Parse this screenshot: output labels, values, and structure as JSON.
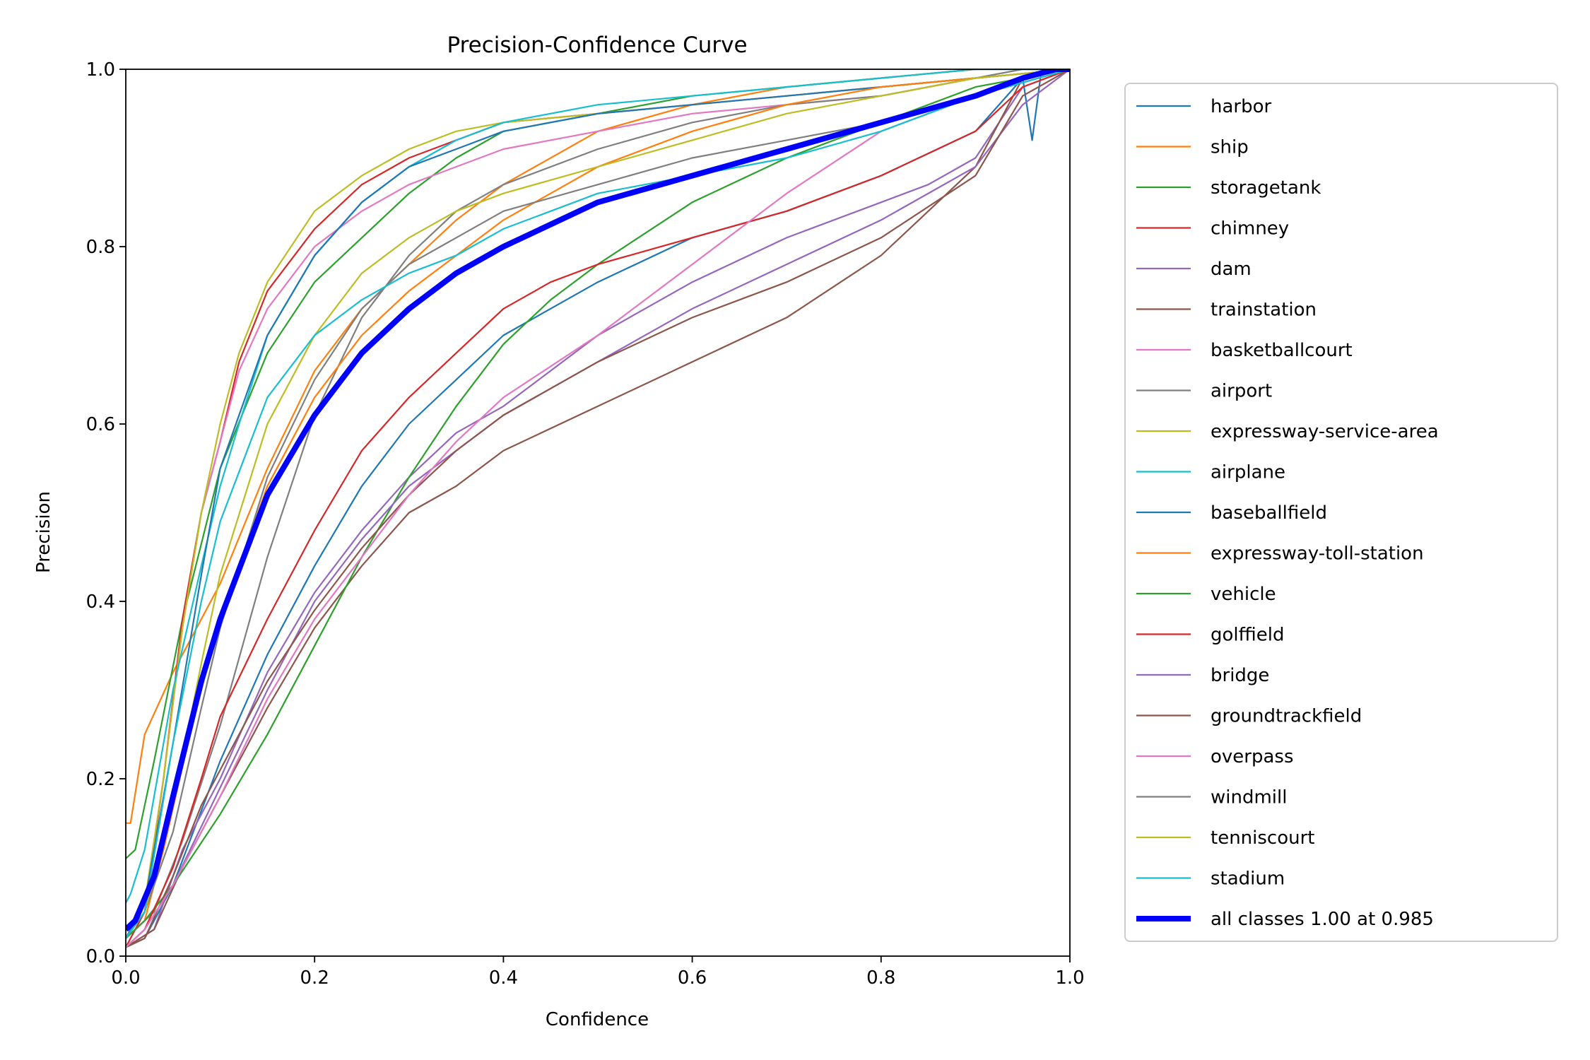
{
  "chart_data": {
    "type": "line",
    "title": "Precision-Confidence Curve",
    "xlabel": "Confidence",
    "ylabel": "Precision",
    "xlim": [
      0.0,
      1.0
    ],
    "ylim": [
      0.0,
      1.0
    ],
    "xticks": [
      "0.0",
      "0.2",
      "0.4",
      "0.6",
      "0.8",
      "1.0"
    ],
    "yticks": [
      "0.0",
      "0.2",
      "0.4",
      "0.6",
      "0.8",
      "1.0"
    ],
    "grid": false,
    "legend_position": "outside-right",
    "series": [
      {
        "name": "harbor",
        "color": "#1f77b4",
        "x": [
          0.0,
          0.02,
          0.05,
          0.1,
          0.15,
          0.2,
          0.25,
          0.3,
          0.4,
          0.5,
          0.6,
          0.7,
          0.8,
          0.9,
          0.95,
          0.96,
          0.97,
          1.0
        ],
        "y": [
          0.01,
          0.02,
          0.08,
          0.22,
          0.34,
          0.44,
          0.53,
          0.6,
          0.7,
          0.76,
          0.81,
          0.84,
          0.88,
          0.93,
          0.99,
          0.92,
          1.0,
          1.0
        ]
      },
      {
        "name": "ship",
        "color": "#ff7f0e",
        "x": [
          0.0,
          0.005,
          0.02,
          0.05,
          0.1,
          0.15,
          0.2,
          0.25,
          0.3,
          0.35,
          0.4,
          0.5,
          0.6,
          0.7,
          0.8,
          0.9,
          0.95,
          1.0
        ],
        "y": [
          0.15,
          0.15,
          0.25,
          0.32,
          0.42,
          0.55,
          0.66,
          0.73,
          0.78,
          0.83,
          0.87,
          0.93,
          0.96,
          0.98,
          0.99,
          1.0,
          1.0,
          1.0
        ]
      },
      {
        "name": "storagetank",
        "color": "#2ca02c",
        "x": [
          0.0,
          0.01,
          0.03,
          0.06,
          0.1,
          0.15,
          0.2,
          0.25,
          0.3,
          0.35,
          0.4,
          0.5,
          0.6,
          0.7,
          0.8,
          0.9,
          0.95,
          1.0
        ],
        "y": [
          0.11,
          0.12,
          0.22,
          0.38,
          0.55,
          0.68,
          0.76,
          0.81,
          0.86,
          0.9,
          0.93,
          0.95,
          0.97,
          0.98,
          0.99,
          1.0,
          1.0,
          1.0
        ]
      },
      {
        "name": "chimney",
        "color": "#d62728",
        "x": [
          0.0,
          0.02,
          0.04,
          0.06,
          0.08,
          0.1,
          0.12,
          0.15,
          0.2,
          0.25,
          0.3,
          0.35,
          0.4,
          0.5,
          0.6,
          0.7,
          0.8,
          0.9,
          1.0
        ],
        "y": [
          0.01,
          0.05,
          0.2,
          0.38,
          0.5,
          0.58,
          0.67,
          0.75,
          0.82,
          0.87,
          0.9,
          0.92,
          0.94,
          0.95,
          0.96,
          0.97,
          0.98,
          0.99,
          1.0
        ]
      },
      {
        "name": "dam",
        "color": "#9467bd",
        "x": [
          0.0,
          0.03,
          0.06,
          0.1,
          0.15,
          0.2,
          0.25,
          0.3,
          0.35,
          0.4,
          0.5,
          0.6,
          0.7,
          0.8,
          0.85,
          0.9,
          0.95,
          1.0
        ],
        "y": [
          0.01,
          0.03,
          0.12,
          0.2,
          0.32,
          0.41,
          0.48,
          0.54,
          0.59,
          0.62,
          0.7,
          0.76,
          0.81,
          0.85,
          0.87,
          0.9,
          0.98,
          1.0
        ]
      },
      {
        "name": "trainstation",
        "color": "#8c564b",
        "x": [
          0.0,
          0.03,
          0.06,
          0.1,
          0.15,
          0.2,
          0.25,
          0.3,
          0.35,
          0.4,
          0.5,
          0.6,
          0.7,
          0.8,
          0.85,
          0.9,
          0.93,
          0.95,
          1.0
        ],
        "y": [
          0.01,
          0.03,
          0.1,
          0.18,
          0.28,
          0.37,
          0.44,
          0.5,
          0.53,
          0.57,
          0.62,
          0.67,
          0.72,
          0.79,
          0.84,
          0.89,
          0.95,
          0.99,
          1.0
        ]
      },
      {
        "name": "basketballcourt",
        "color": "#e377c2",
        "x": [
          0.0,
          0.02,
          0.04,
          0.06,
          0.08,
          0.1,
          0.12,
          0.15,
          0.2,
          0.25,
          0.3,
          0.35,
          0.4,
          0.5,
          0.6,
          0.7,
          0.8,
          0.9,
          1.0
        ],
        "y": [
          0.02,
          0.06,
          0.2,
          0.37,
          0.5,
          0.58,
          0.66,
          0.73,
          0.8,
          0.84,
          0.87,
          0.89,
          0.91,
          0.93,
          0.95,
          0.96,
          0.97,
          0.99,
          1.0
        ]
      },
      {
        "name": "airport",
        "color": "#7f7f7f",
        "x": [
          0.0,
          0.03,
          0.06,
          0.1,
          0.15,
          0.2,
          0.25,
          0.3,
          0.35,
          0.4,
          0.5,
          0.6,
          0.7,
          0.8,
          0.9,
          0.95,
          1.0
        ],
        "y": [
          0.02,
          0.05,
          0.13,
          0.26,
          0.45,
          0.61,
          0.72,
          0.79,
          0.84,
          0.87,
          0.91,
          0.94,
          0.96,
          0.97,
          0.99,
          1.0,
          1.0
        ]
      },
      {
        "name": "expressway-service-area",
        "color": "#bcbd22",
        "x": [
          0.0,
          0.02,
          0.04,
          0.06,
          0.08,
          0.1,
          0.12,
          0.15,
          0.2,
          0.25,
          0.3,
          0.35,
          0.4,
          0.5,
          0.6,
          0.7,
          0.8,
          0.9,
          1.0
        ],
        "y": [
          0.02,
          0.06,
          0.2,
          0.37,
          0.5,
          0.6,
          0.68,
          0.76,
          0.84,
          0.88,
          0.91,
          0.93,
          0.94,
          0.95,
          0.96,
          0.97,
          0.98,
          0.99,
          1.0
        ]
      },
      {
        "name": "airplane",
        "color": "#17becf",
        "x": [
          0.0,
          0.005,
          0.02,
          0.05,
          0.08,
          0.1,
          0.12,
          0.15,
          0.2,
          0.25,
          0.3,
          0.35,
          0.4,
          0.5,
          0.6,
          0.7,
          0.8,
          0.9,
          1.0
        ],
        "y": [
          0.06,
          0.07,
          0.12,
          0.3,
          0.44,
          0.53,
          0.6,
          0.7,
          0.79,
          0.85,
          0.89,
          0.92,
          0.94,
          0.96,
          0.97,
          0.98,
          0.99,
          1.0,
          1.0
        ]
      },
      {
        "name": "baseballfield",
        "color": "#1f77b4",
        "x": [
          0.0,
          0.02,
          0.05,
          0.08,
          0.1,
          0.15,
          0.2,
          0.25,
          0.3,
          0.35,
          0.4,
          0.5,
          0.6,
          0.7,
          0.8,
          0.9,
          1.0
        ],
        "y": [
          0.02,
          0.06,
          0.24,
          0.43,
          0.55,
          0.7,
          0.79,
          0.85,
          0.89,
          0.91,
          0.93,
          0.95,
          0.96,
          0.97,
          0.98,
          0.99,
          1.0
        ]
      },
      {
        "name": "expressway-toll-station",
        "color": "#ff7f0e",
        "x": [
          0.0,
          0.02,
          0.04,
          0.07,
          0.1,
          0.15,
          0.2,
          0.25,
          0.3,
          0.35,
          0.4,
          0.45,
          0.5,
          0.6,
          0.7,
          0.8,
          0.9,
          1.0
        ],
        "y": [
          0.02,
          0.04,
          0.12,
          0.26,
          0.38,
          0.53,
          0.63,
          0.7,
          0.75,
          0.79,
          0.83,
          0.86,
          0.89,
          0.93,
          0.96,
          0.98,
          0.99,
          1.0
        ]
      },
      {
        "name": "vehicle",
        "color": "#2ca02c",
        "x": [
          0.0,
          0.02,
          0.05,
          0.1,
          0.15,
          0.2,
          0.25,
          0.3,
          0.35,
          0.4,
          0.45,
          0.5,
          0.6,
          0.7,
          0.8,
          0.9,
          1.0
        ],
        "y": [
          0.02,
          0.04,
          0.08,
          0.16,
          0.25,
          0.35,
          0.45,
          0.54,
          0.62,
          0.69,
          0.74,
          0.78,
          0.85,
          0.9,
          0.94,
          0.98,
          1.0
        ]
      },
      {
        "name": "golffield",
        "color": "#d62728",
        "x": [
          0.0,
          0.02,
          0.05,
          0.08,
          0.1,
          0.15,
          0.2,
          0.25,
          0.3,
          0.35,
          0.4,
          0.45,
          0.5,
          0.6,
          0.7,
          0.8,
          0.9,
          0.95,
          1.0
        ],
        "y": [
          0.01,
          0.03,
          0.1,
          0.2,
          0.27,
          0.38,
          0.48,
          0.57,
          0.63,
          0.68,
          0.73,
          0.76,
          0.78,
          0.81,
          0.84,
          0.88,
          0.93,
          0.98,
          1.0
        ]
      },
      {
        "name": "bridge",
        "color": "#9467bd",
        "x": [
          0.0,
          0.02,
          0.05,
          0.1,
          0.15,
          0.2,
          0.25,
          0.3,
          0.35,
          0.4,
          0.5,
          0.6,
          0.7,
          0.8,
          0.9,
          0.95,
          1.0
        ],
        "y": [
          0.01,
          0.03,
          0.08,
          0.19,
          0.3,
          0.4,
          0.47,
          0.53,
          0.57,
          0.61,
          0.67,
          0.73,
          0.78,
          0.83,
          0.89,
          0.96,
          1.0
        ]
      },
      {
        "name": "groundtrackfield",
        "color": "#8c564b",
        "x": [
          0.0,
          0.02,
          0.05,
          0.08,
          0.1,
          0.15,
          0.2,
          0.25,
          0.3,
          0.35,
          0.4,
          0.5,
          0.6,
          0.7,
          0.8,
          0.9,
          0.95,
          1.0
        ],
        "y": [
          0.01,
          0.02,
          0.09,
          0.17,
          0.21,
          0.31,
          0.39,
          0.46,
          0.52,
          0.57,
          0.61,
          0.67,
          0.72,
          0.76,
          0.81,
          0.88,
          0.97,
          1.0
        ]
      },
      {
        "name": "overpass",
        "color": "#e377c2",
        "x": [
          0.0,
          0.02,
          0.05,
          0.1,
          0.15,
          0.2,
          0.25,
          0.3,
          0.35,
          0.4,
          0.5,
          0.6,
          0.7,
          0.8,
          0.9,
          0.95,
          1.0
        ],
        "y": [
          0.01,
          0.03,
          0.08,
          0.18,
          0.29,
          0.38,
          0.45,
          0.52,
          0.58,
          0.63,
          0.7,
          0.78,
          0.86,
          0.93,
          0.97,
          0.99,
          1.0
        ]
      },
      {
        "name": "windmill",
        "color": "#7f7f7f",
        "x": [
          0.0,
          0.02,
          0.05,
          0.08,
          0.1,
          0.15,
          0.2,
          0.25,
          0.3,
          0.35,
          0.4,
          0.5,
          0.6,
          0.7,
          0.8,
          0.9,
          1.0
        ],
        "y": [
          0.02,
          0.05,
          0.14,
          0.28,
          0.37,
          0.54,
          0.65,
          0.73,
          0.78,
          0.81,
          0.84,
          0.87,
          0.9,
          0.92,
          0.94,
          0.97,
          1.0
        ]
      },
      {
        "name": "tenniscourt",
        "color": "#bcbd22",
        "x": [
          0.0,
          0.02,
          0.05,
          0.08,
          0.1,
          0.15,
          0.2,
          0.25,
          0.3,
          0.35,
          0.4,
          0.5,
          0.6,
          0.7,
          0.8,
          0.9,
          1.0
        ],
        "y": [
          0.02,
          0.05,
          0.17,
          0.33,
          0.43,
          0.6,
          0.7,
          0.77,
          0.81,
          0.84,
          0.86,
          0.89,
          0.92,
          0.95,
          0.97,
          0.99,
          1.0
        ]
      },
      {
        "name": "stadium",
        "color": "#17becf",
        "x": [
          0.0,
          0.02,
          0.05,
          0.08,
          0.1,
          0.15,
          0.2,
          0.25,
          0.3,
          0.35,
          0.4,
          0.45,
          0.5,
          0.6,
          0.7,
          0.8,
          0.9,
          1.0
        ],
        "y": [
          0.02,
          0.05,
          0.24,
          0.4,
          0.49,
          0.63,
          0.7,
          0.74,
          0.77,
          0.79,
          0.82,
          0.84,
          0.86,
          0.88,
          0.9,
          0.93,
          0.97,
          1.0
        ]
      },
      {
        "name": "all classes 1.00 at 0.985",
        "color": "#0000ff",
        "thick": true,
        "x": [
          0.0,
          0.01,
          0.03,
          0.05,
          0.08,
          0.1,
          0.15,
          0.2,
          0.25,
          0.3,
          0.35,
          0.4,
          0.5,
          0.6,
          0.7,
          0.8,
          0.9,
          0.95,
          0.985,
          1.0
        ],
        "y": [
          0.03,
          0.04,
          0.09,
          0.18,
          0.31,
          0.38,
          0.52,
          0.61,
          0.68,
          0.73,
          0.77,
          0.8,
          0.85,
          0.88,
          0.91,
          0.94,
          0.97,
          0.99,
          1.0,
          1.0
        ]
      }
    ]
  }
}
